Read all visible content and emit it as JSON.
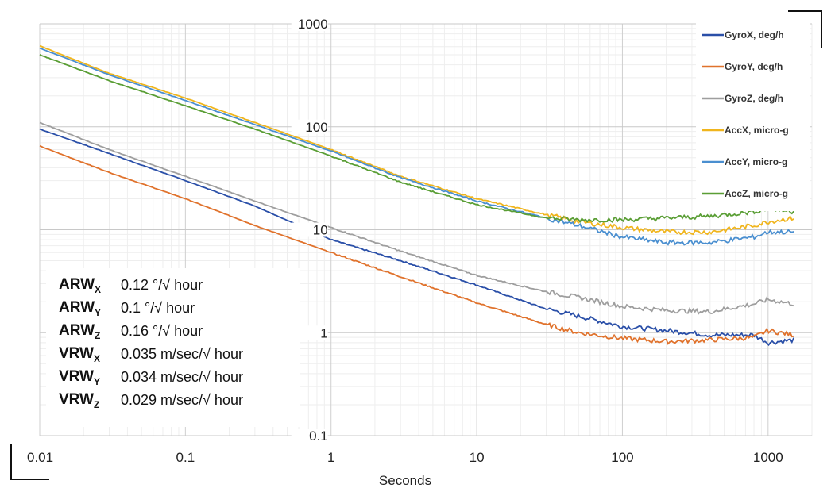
{
  "chart_data": {
    "type": "line",
    "x_scale": "log",
    "y_scale": "log",
    "xlim": [
      0.01,
      2000
    ],
    "ylim": [
      0.1,
      1000
    ],
    "xlabel": "Seconds",
    "ylabel": "",
    "grid": true,
    "legend_position": "right",
    "x_tick_labels": [
      "0.01",
      "0.1",
      "1",
      "10",
      "100",
      "1000"
    ],
    "y_tick_labels": [
      "1000",
      "100",
      "10",
      "1",
      "0.1"
    ],
    "series": [
      {
        "name": "GyroX, deg/h",
        "color": "#2a4fa8",
        "x": [
          0.01,
          0.03,
          0.1,
          0.3,
          1,
          3,
          10,
          30,
          50,
          100,
          200,
          400,
          800,
          1000,
          1500
        ],
        "values": [
          95,
          55,
          30,
          17,
          8,
          5,
          2.9,
          1.7,
          1.45,
          1.15,
          1.05,
          0.95,
          0.95,
          0.8,
          0.85
        ]
      },
      {
        "name": "GyroY, deg/h",
        "color": "#e0722c",
        "x": [
          0.01,
          0.03,
          0.1,
          0.3,
          1,
          3,
          10,
          30,
          50,
          100,
          200,
          400,
          800,
          1000,
          1500
        ],
        "values": [
          65,
          36,
          20,
          11,
          6,
          3.5,
          1.95,
          1.2,
          1.0,
          0.88,
          0.82,
          0.85,
          0.9,
          1.05,
          0.95
        ]
      },
      {
        "name": "GyroZ, deg/h",
        "color": "#9e9e9e",
        "x": [
          0.01,
          0.03,
          0.1,
          0.3,
          1,
          3,
          10,
          30,
          50,
          100,
          200,
          400,
          800,
          1000,
          1500
        ],
        "values": [
          110,
          60,
          33,
          19,
          10.5,
          6.2,
          3.6,
          2.5,
          2.2,
          1.8,
          1.65,
          1.6,
          1.9,
          2.1,
          1.9
        ]
      },
      {
        "name": "AccX, micro-g",
        "color": "#f0b51d",
        "x": [
          0.01,
          0.03,
          0.1,
          0.3,
          1,
          3,
          10,
          30,
          50,
          100,
          200,
          400,
          800,
          1000,
          1500
        ],
        "values": [
          610,
          330,
          190,
          110,
          60,
          33,
          20,
          14,
          12,
          10.5,
          9.5,
          9.5,
          11,
          12,
          13
        ]
      },
      {
        "name": "AccY, micro-g",
        "color": "#4a8fd0",
        "x": [
          0.01,
          0.03,
          0.1,
          0.3,
          1,
          3,
          10,
          30,
          50,
          100,
          200,
          400,
          800,
          1000,
          1500
        ],
        "values": [
          580,
          320,
          180,
          105,
          58,
          32,
          19,
          13,
          11,
          8.5,
          7.5,
          7.5,
          8.5,
          9.5,
          9.5
        ]
      },
      {
        "name": "AccZ, micro-g",
        "color": "#5a9e35",
        "x": [
          0.01,
          0.03,
          0.1,
          0.3,
          1,
          3,
          10,
          30,
          50,
          100,
          200,
          400,
          800,
          1000,
          1500
        ],
        "values": [
          500,
          280,
          160,
          95,
          52,
          29,
          17.5,
          13,
          12.5,
          12.5,
          13,
          13.5,
          15,
          16,
          15
        ]
      }
    ]
  },
  "random_walk": [
    {
      "label": "ARW",
      "sub": "X",
      "value": "0.12 °/√ hour"
    },
    {
      "label": "ARW",
      "sub": "Y",
      "value": "0.1 °/√ hour"
    },
    {
      "label": "ARW",
      "sub": "Z",
      "value": "0.16 °/√ hour"
    },
    {
      "label": "VRW",
      "sub": "X",
      "value": "0.035 m/sec/√ hour"
    },
    {
      "label": "VRW",
      "sub": "Y",
      "value": "0.034 m/sec/√ hour"
    },
    {
      "label": "VRW",
      "sub": "Z",
      "value": "0.029 m/sec/√ hour"
    }
  ]
}
